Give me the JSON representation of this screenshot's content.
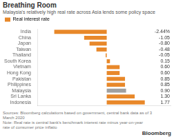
{
  "chart_data": {
    "type": "bar",
    "orientation": "horizontal",
    "title": "Breathing Room",
    "subtitle": "Malaysia's relatively high real rate across Asia lends some policy space",
    "categories": [
      "India",
      "China",
      "Japan",
      "Taiwan",
      "Thailand",
      "South Korea",
      "Vietnam",
      "Hong Kong",
      "Pakistan",
      "Philippines",
      "Malaysia",
      "Sri Lanka",
      "Indonesia"
    ],
    "series": [
      {
        "name": "Real interest rate",
        "color": "#E8882A",
        "colors": [
          "#E8882A",
          "#E8882A",
          "#E8882A",
          "#E8882A",
          "#E8882A",
          "#E8882A",
          "#E8882A",
          "#E8882A",
          "#E8882A",
          "#E8882A",
          "#A0A0A0",
          "#E8882A",
          "#E8882A"
        ],
        "values": [
          -2.44,
          -1.05,
          -0.8,
          -0.48,
          -0.05,
          0.15,
          0.6,
          0.6,
          0.85,
          0.85,
          0.9,
          1.3,
          1.77
        ],
        "value_labels": [
          "-2.44%",
          "-1.05",
          "-0.80",
          "-0.48",
          "-0.05",
          "0.15",
          "0.60",
          "0.60",
          "0.85",
          "0.85",
          "0.90",
          "1.30",
          "1.77"
        ]
      }
    ],
    "xlim": [
      -3.2,
      3.0
    ],
    "legend": "top",
    "tick_labels": "y",
    "data_labels": true,
    "grid": false,
    "annotations": [
      "Sources: Bloomberg calculations based on government, central bank data as of 3\nMarch 2020\nNote: Real rate is central bank's benchmark interest rate minus year-on-year\nrate of consumer price inflatio",
      "Bloomberg"
    ]
  }
}
